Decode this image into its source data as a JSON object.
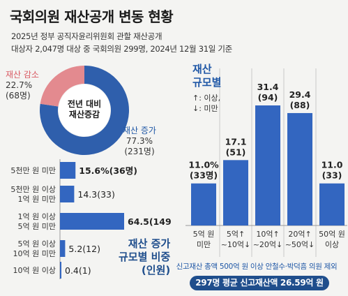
{
  "header": {
    "title": "국회의원 재산공개 변동 현황",
    "subtitle1": "2025년 정부 공직자윤리위원회 관할 재산공개",
    "subtitle2": "대상자 2,047명 대상 중 국회의원 299명, 2024년 12월 31일 기준"
  },
  "colors": {
    "increase": "#2f5fac",
    "decrease": "#e38a8f",
    "bar": "#3366c0",
    "navy": "#1f4e8c"
  },
  "chart_data": [
    {
      "type": "pie",
      "center_label": [
        "전년 대비",
        "재산증감"
      ],
      "slices": [
        {
          "label": "재산 증가",
          "percent": 77.3,
          "percent_text": "77.3%",
          "count_text": "(231명)",
          "color": "#2f5fac"
        },
        {
          "label": "재산 감소",
          "percent": 22.7,
          "percent_text": "22.7%",
          "count_text": "(68명)",
          "color": "#e38a8f"
        }
      ]
    },
    {
      "type": "bar",
      "orientation": "horizontal",
      "title": [
        "재산 증가",
        "규모별 비중",
        "(인원)"
      ],
      "categories": [
        [
          "5천만 원 미만"
        ],
        [
          "5천만 원 이상",
          "1억 원 미만"
        ],
        [
          "1억 원 이상",
          "5억 원 미만"
        ],
        [
          "5억 원 이상",
          "10억 원 미만"
        ],
        [
          "10억 원 이상"
        ]
      ],
      "values": [
        15.6,
        14.3,
        64.5,
        5.2,
        0.4
      ],
      "counts": [
        36,
        33,
        149,
        12,
        1
      ],
      "labels": [
        "15.6%(36명)",
        "14.3(33)",
        "64.5(149)",
        "5.2(12)",
        "0.4(1)"
      ]
    },
    {
      "type": "bar",
      "orientation": "vertical",
      "title": [
        "재산",
        "규모별"
      ],
      "legend": [
        "↑: 이상,",
        "↓: 미만"
      ],
      "categories": [
        [
          "5억 원",
          "미만"
        ],
        [
          "5억↑",
          "~10억↓"
        ],
        [
          "10억↑",
          "~20억↓"
        ],
        [
          "20억↑",
          "~50억↓"
        ],
        [
          "50억 원",
          "이상"
        ]
      ],
      "values": [
        11.0,
        17.1,
        31.4,
        29.4,
        11.0
      ],
      "counts": [
        33,
        51,
        94,
        88,
        33
      ],
      "labels": [
        [
          "11.0%",
          "(33명)"
        ],
        [
          "17.1",
          "(51)"
        ],
        [
          "31.4",
          "(94)"
        ],
        [
          "29.4",
          "(88)"
        ],
        [
          "11.0",
          "(33)"
        ]
      ]
    }
  ],
  "footer": {
    "note": "신고재산 총액 500억 원 이상 안철수·박덕흠 의원 제외",
    "summary": "297명 평균 신고재산액 26.59억 원"
  }
}
